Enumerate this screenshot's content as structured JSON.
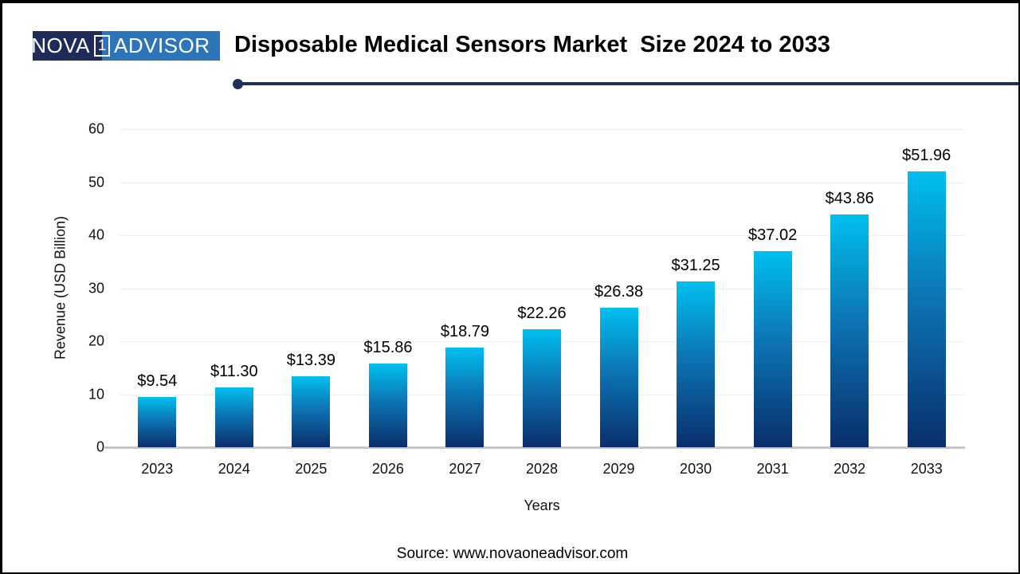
{
  "logo": {
    "left": "NOVA",
    "one": "1",
    "right": "ADVISOR",
    "navy": "#1f2c59",
    "blue": "#2e74b8"
  },
  "header": {
    "title": "Disposable Medical Sensors Market  Size 2024 to 2033",
    "rule_color": "#1f3057"
  },
  "chart_data": {
    "type": "bar",
    "title": "Disposable Medical Sensors Market  Size 2024 to 2033",
    "categories": [
      "2023",
      "2024",
      "2025",
      "2026",
      "2027",
      "2028",
      "2029",
      "2030",
      "2031",
      "2032",
      "2033"
    ],
    "values": [
      9.54,
      11.3,
      13.39,
      15.86,
      18.79,
      22.26,
      26.38,
      31.25,
      37.02,
      43.86,
      51.96
    ],
    "value_labels": [
      "$9.54",
      "$11.30",
      "$13.39",
      "$15.86",
      "$18.79",
      "$22.26",
      "$26.38",
      "$31.25",
      "$37.02",
      "$43.86",
      "$51.96"
    ],
    "xlabel": "Years",
    "ylabel": "Revenue (USD Billion)",
    "ylim": [
      0,
      60
    ],
    "yticks": [
      0,
      10,
      20,
      30,
      40,
      50,
      60
    ],
    "grid": true,
    "legend": false,
    "bar_gradient": [
      "#00bff0",
      "#0d74b3",
      "#0a2e6c"
    ]
  },
  "footer": {
    "source": "Source: www.novaoneadvisor.com"
  }
}
